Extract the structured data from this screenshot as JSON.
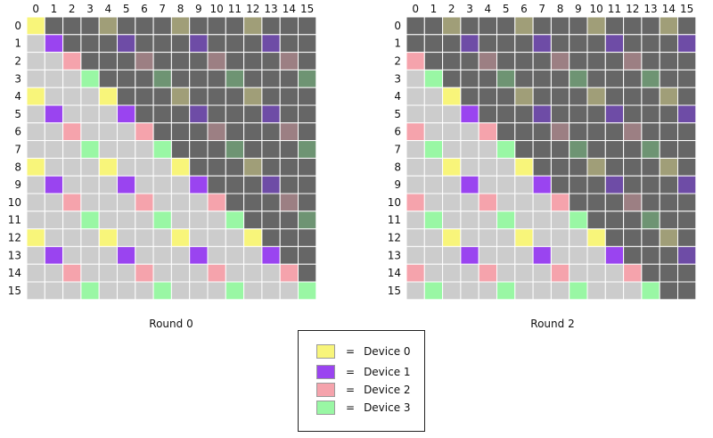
{
  "colors": {
    "background": "#cccccc",
    "masked": "#666666",
    "grid_line": "#ffffff",
    "devices": [
      "#f8f57a",
      "#9a44f0",
      "#f5a3ac",
      "#99f7a4"
    ],
    "devices_on_masked": [
      "#a09e78",
      "#6e4ca6",
      "#9c7f83",
      "#6e9473"
    ]
  },
  "grids": [
    {
      "name": "round-0",
      "label": "Round 0",
      "size": 16,
      "col_labels": [
        "0",
        "1",
        "2",
        "3",
        "4",
        "5",
        "6",
        "7",
        "8",
        "9",
        "10",
        "11",
        "12",
        "13",
        "14",
        "15"
      ],
      "row_labels": [
        "0",
        "1",
        "2",
        "3",
        "4",
        "5",
        "6",
        "7",
        "8",
        "9",
        "10",
        "11",
        "12",
        "13",
        "14",
        "15"
      ],
      "mask_rule": "col > row",
      "device_rule": "cells where (col - row) mod 4 == 0 colored by device row mod 4"
    },
    {
      "name": "round-2",
      "label": "Round 2",
      "size": 16,
      "col_labels": [
        "0",
        "1",
        "2",
        "3",
        "4",
        "5",
        "6",
        "7",
        "8",
        "9",
        "10",
        "11",
        "12",
        "13",
        "14",
        "15"
      ],
      "row_labels": [
        "0",
        "1",
        "2",
        "3",
        "4",
        "5",
        "6",
        "7",
        "8",
        "9",
        "10",
        "11",
        "12",
        "13",
        "14",
        "15"
      ],
      "mask_rule": "col > row - 2",
      "device_rule": "cells where (col - row) mod 4 == 2 colored by device row mod 4"
    }
  ],
  "legend": {
    "items": [
      {
        "eq": "=",
        "label": "Device 0"
      },
      {
        "eq": "=",
        "label": "Device 1"
      },
      {
        "eq": "=",
        "label": "Device 2"
      },
      {
        "eq": "=",
        "label": "Device 3"
      }
    ]
  }
}
